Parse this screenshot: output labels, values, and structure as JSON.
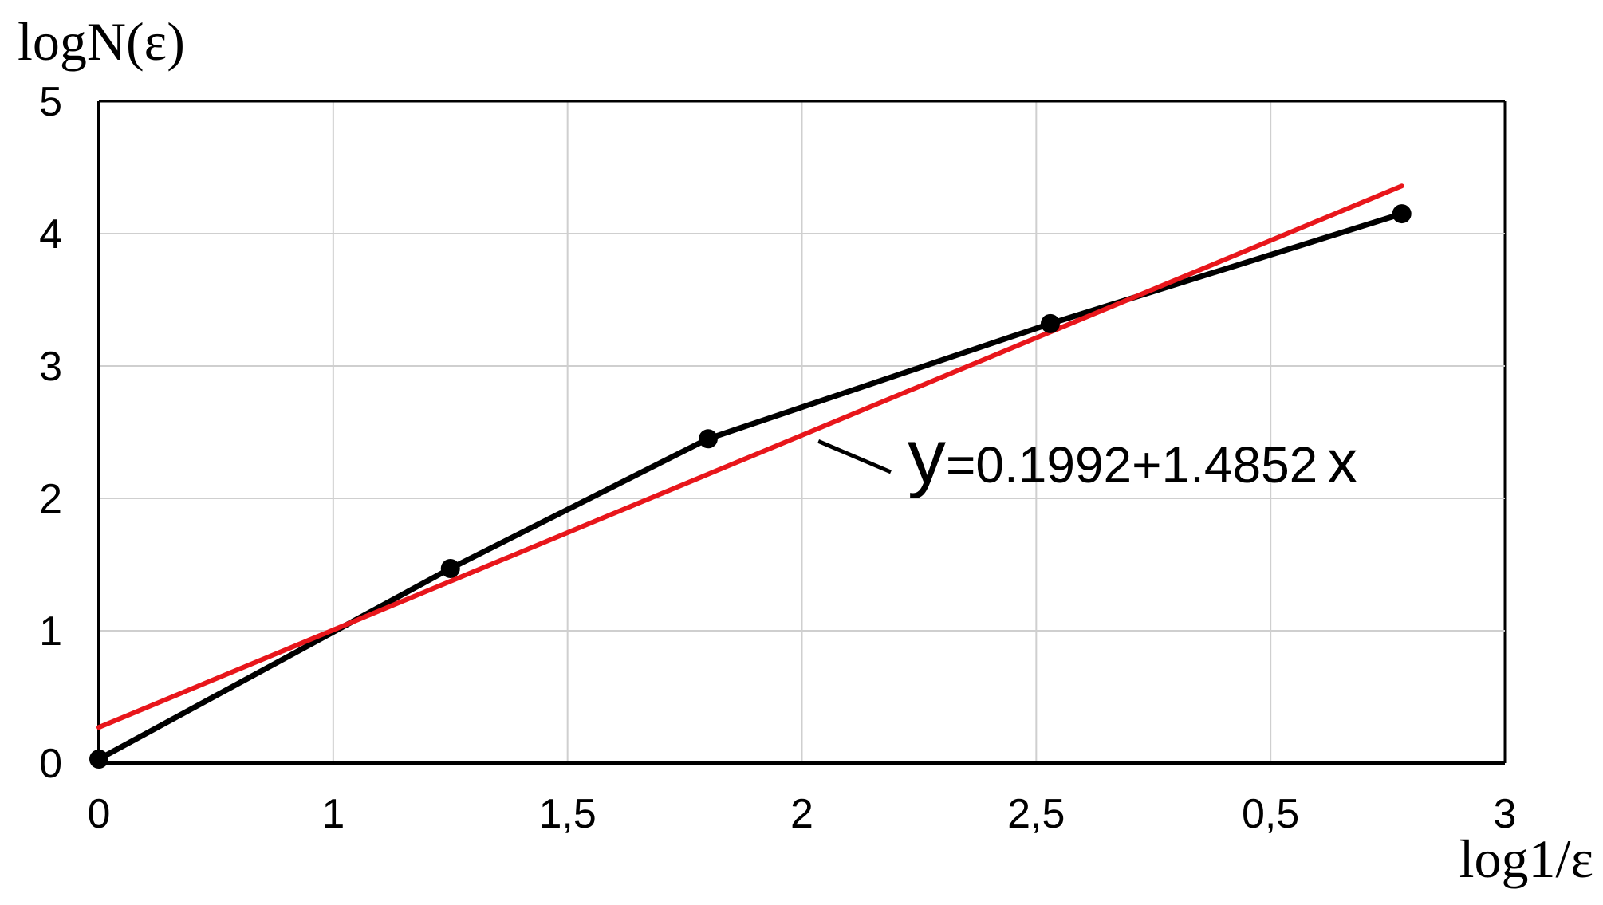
{
  "chart_data": {
    "type": "line",
    "ylabel": "logN(ε)",
    "xlabel": "log1/ε",
    "x_ticks": [
      "0",
      "1",
      "1,5",
      "2",
      "2,5",
      "0,5",
      "3"
    ],
    "y_ticks": [
      "0",
      "1",
      "2",
      "3",
      "4",
      "5"
    ],
    "xlim": [
      0,
      3
    ],
    "ylim": [
      0,
      5
    ],
    "grid": true,
    "series": [
      {
        "color": "#000000",
        "marker": "circle",
        "points": [
          {
            "x": 0.0,
            "y": 0.03
          },
          {
            "x": 0.75,
            "y": 1.47
          },
          {
            "x": 1.3,
            "y": 2.45
          },
          {
            "x": 2.03,
            "y": 3.32
          },
          {
            "x": 2.78,
            "y": 4.15
          }
        ]
      },
      {
        "color": "#e8161b",
        "points": [
          {
            "x": 0.0,
            "y": 0.27
          },
          {
            "x": 2.78,
            "y": 4.36
          }
        ]
      }
    ],
    "annotation": {
      "prefix": "y",
      "body": "=0.1992+1.4852",
      "suffix": "x",
      "pointer_x": 1.53,
      "pointer_y": 2.45
    }
  }
}
